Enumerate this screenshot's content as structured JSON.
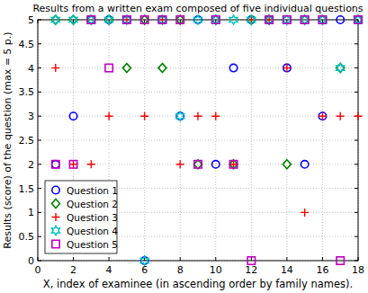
{
  "chart_data": {
    "type": "scatter",
    "title": "Results from a written exam composed of five individual questions",
    "x_label": "X, index of examinee (in ascending order by family names).",
    "y_label": "Results (score) of the question (max = 5 p.)",
    "x": [
      1,
      2,
      3,
      4,
      5,
      6,
      7,
      8,
      9,
      10,
      11,
      12,
      13,
      14,
      15,
      16,
      17,
      18
    ],
    "series": [
      {
        "name": "Question 1",
        "color": "#0000ff",
        "marker": "circle",
        "values": [
          2,
          3,
          5,
          5,
          5,
          0,
          5,
          3,
          5,
          2,
          4,
          5,
          5,
          4,
          2,
          3,
          5,
          5
        ]
      },
      {
        "name": "Question 2",
        "color": "#008000",
        "marker": "diamond",
        "values": [
          5,
          5,
          5,
          5,
          4,
          5,
          4,
          5,
          2,
          5,
          2,
          5,
          5,
          2,
          5,
          5,
          4,
          5
        ]
      },
      {
        "name": "Question 3",
        "color": "#ff0000",
        "marker": "plus",
        "values": [
          4,
          2,
          2,
          3,
          5,
          3,
          5,
          2,
          3,
          3,
          2,
          5,
          5,
          4,
          1,
          3,
          3,
          3
        ]
      },
      {
        "name": "Question 4",
        "color": "#00bfbf",
        "marker": "hexagram",
        "values": [
          5,
          5,
          5,
          5,
          5,
          0,
          5,
          3,
          5,
          5,
          5,
          5,
          5,
          5,
          5,
          5,
          4,
          5
        ]
      },
      {
        "name": "Question 5",
        "color": "#bf00bf",
        "marker": "square",
        "values": [
          2,
          2,
          5,
          4,
          5,
          5,
          5,
          5,
          2,
          5,
          2,
          0,
          5,
          5,
          5,
          5,
          0,
          5
        ]
      }
    ],
    "xlim": [
      0,
      18
    ],
    "xticks": [
      0,
      2,
      4,
      6,
      8,
      10,
      12,
      14,
      16,
      18
    ],
    "ylim": [
      0,
      5
    ],
    "yticks": [
      0,
      0.5,
      1,
      1.5,
      2,
      2.5,
      3,
      3.5,
      4,
      4.5,
      5
    ],
    "grid": true,
    "legend": "lower left"
  }
}
